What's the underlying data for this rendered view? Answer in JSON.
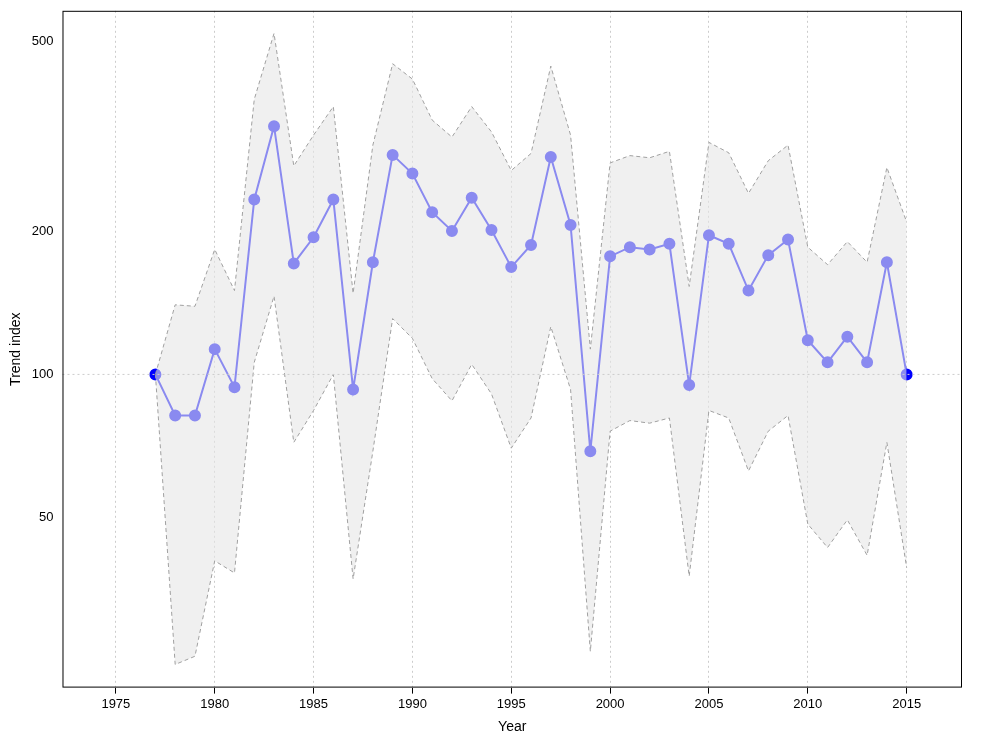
{
  "chart_data": {
    "type": "line",
    "x_label": "Year",
    "y_label": "Trend index",
    "x": [
      1977,
      1978,
      1979,
      1980,
      1981,
      1982,
      1983,
      1984,
      1985,
      1986,
      1987,
      1988,
      1989,
      1990,
      1991,
      1992,
      1993,
      1994,
      1995,
      1996,
      1997,
      1998,
      1999,
      2000,
      2001,
      2002,
      2003,
      2004,
      2005,
      2006,
      2007,
      2008,
      2009,
      2010,
      2011,
      2012,
      2013,
      2014,
      2015
    ],
    "values": [
      100,
      82,
      82,
      113,
      94,
      233,
      332,
      171,
      194,
      233,
      93,
      172,
      289,
      264,
      219,
      200,
      235,
      201,
      168,
      187,
      286,
      206,
      69,
      177,
      185,
      183,
      188,
      95,
      196,
      188,
      150,
      178,
      192,
      118,
      106,
      120,
      106,
      172,
      100
    ],
    "ci_lower": [
      100,
      24.6,
      25.6,
      40.6,
      38.3,
      106,
      146,
      72,
      84,
      100,
      37.2,
      69,
      131,
      119,
      98,
      88,
      105,
      91,
      70,
      81,
      126,
      93,
      26.2,
      76,
      80,
      79,
      81,
      37.7,
      84,
      81,
      62.7,
      76,
      82,
      48.5,
      43.3,
      49.5,
      41.7,
      72,
      39.3
    ],
    "ci_upper": [
      100,
      140,
      139,
      183,
      150,
      378,
      520,
      274,
      318,
      365,
      148,
      303,
      449,
      417,
      342,
      315,
      365,
      323,
      268,
      291,
      444,
      318,
      113,
      278,
      288,
      285,
      294,
      153,
      307,
      292,
      240,
      281,
      303,
      185,
      170,
      190,
      172,
      272,
      209
    ],
    "color": "#0000ff",
    "marker": "circle",
    "log": "y",
    "xlim": [
      1972.3,
      2017.8
    ],
    "xticks": [
      1975,
      1980,
      1985,
      1990,
      1995,
      2000,
      2005,
      2010,
      2015
    ],
    "ylim": [
      22,
      580
    ],
    "yticks": [
      50,
      100,
      200,
      500
    ],
    "hline": 100,
    "grid": true
  }
}
